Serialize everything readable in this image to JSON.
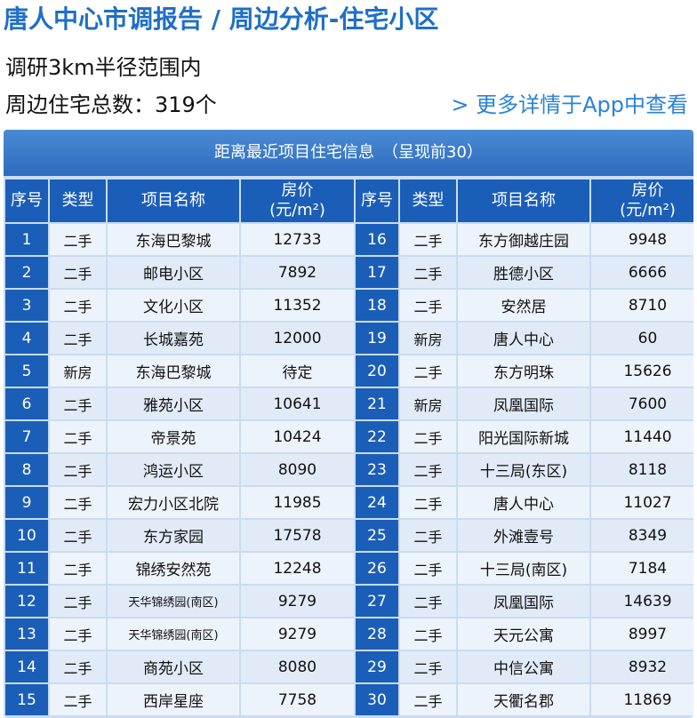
{
  "header": {
    "title": "唐人中心市调报告 / 周边分析-住宅小区",
    "scope": "调研3km半径范围内",
    "total": "周边住宅总数：319个",
    "more_link": "> 更多详情于App中查看"
  },
  "table": {
    "caption": "距离最近项目住宅信息　（呈现前30）",
    "headers": {
      "index": "序号",
      "type": "类型",
      "name": "项目名称",
      "price_1": "房价",
      "price_2": "(元/m²)"
    },
    "rows": [
      {
        "n": "1",
        "type": "二手",
        "name": "东海巴黎城",
        "price": "12733"
      },
      {
        "n": "2",
        "type": "二手",
        "name": "邮电小区",
        "price": "7892"
      },
      {
        "n": "3",
        "type": "二手",
        "name": "文化小区",
        "price": "11352"
      },
      {
        "n": "4",
        "type": "二手",
        "name": "长城嘉苑",
        "price": "12000"
      },
      {
        "n": "5",
        "type": "新房",
        "name": "东海巴黎城",
        "price": "待定"
      },
      {
        "n": "6",
        "type": "二手",
        "name": "雅苑小区",
        "price": "10641"
      },
      {
        "n": "7",
        "type": "二手",
        "name": "帝景苑",
        "price": "10424"
      },
      {
        "n": "8",
        "type": "二手",
        "name": "鸿运小区",
        "price": "8090"
      },
      {
        "n": "9",
        "type": "二手",
        "name": "宏力小区北院",
        "price": "11985"
      },
      {
        "n": "10",
        "type": "二手",
        "name": "东方家园",
        "price": "17578"
      },
      {
        "n": "11",
        "type": "二手",
        "name": "锦绣安然苑",
        "price": "12248"
      },
      {
        "n": "12",
        "type": "二手",
        "name": "天华锦绣园(南区)",
        "price": "9279"
      },
      {
        "n": "13",
        "type": "二手",
        "name": "天华锦绣园(南区)",
        "price": "9279"
      },
      {
        "n": "14",
        "type": "二手",
        "name": "商苑小区",
        "price": "8080"
      },
      {
        "n": "15",
        "type": "二手",
        "name": "西岸星座",
        "price": "7758"
      },
      {
        "n": "16",
        "type": "二手",
        "name": "东方御越庄园",
        "price": "9948"
      },
      {
        "n": "17",
        "type": "二手",
        "name": "胜德小区",
        "price": "6666"
      },
      {
        "n": "18",
        "type": "二手",
        "name": "安然居",
        "price": "8710"
      },
      {
        "n": "19",
        "type": "新房",
        "name": "唐人中心",
        "price": "60"
      },
      {
        "n": "20",
        "type": "二手",
        "name": "东方明珠",
        "price": "15626"
      },
      {
        "n": "21",
        "type": "新房",
        "name": "凤凰国际",
        "price": "7600"
      },
      {
        "n": "22",
        "type": "二手",
        "name": "阳光国际新城",
        "price": "11440"
      },
      {
        "n": "23",
        "type": "二手",
        "name": "十三局(东区)",
        "price": "8118"
      },
      {
        "n": "24",
        "type": "二手",
        "name": "唐人中心",
        "price": "11027"
      },
      {
        "n": "25",
        "type": "二手",
        "name": "外滩壹号",
        "price": "8349"
      },
      {
        "n": "26",
        "type": "二手",
        "name": "十三局(南区)",
        "price": "7184"
      },
      {
        "n": "27",
        "type": "二手",
        "name": "凤凰国际",
        "price": "14639"
      },
      {
        "n": "28",
        "type": "二手",
        "name": "天元公寓",
        "price": "8997"
      },
      {
        "n": "29",
        "type": "二手",
        "name": "中信公寓",
        "price": "8932"
      },
      {
        "n": "30",
        "type": "二手",
        "name": "天衢名郡",
        "price": "11869"
      }
    ]
  }
}
